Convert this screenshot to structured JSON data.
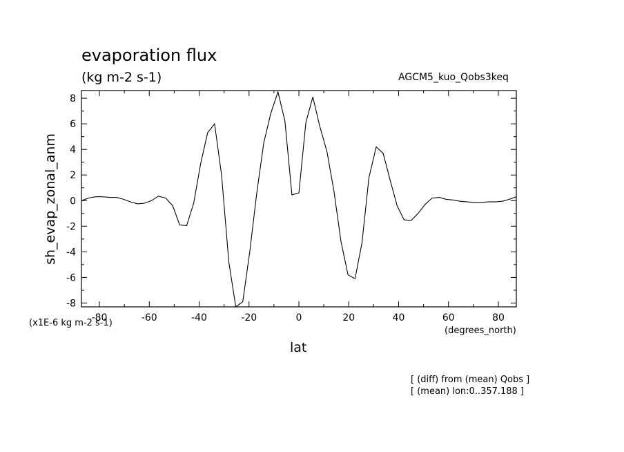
{
  "header": {
    "title": "evaporation flux",
    "units": "(kg m-2 s-1)",
    "case_name": "AGCM5_kuo_Qobs3keq"
  },
  "footer": {
    "scale_note": "(x1E-6 kg m-2 s-1)",
    "x_units": "(degrees_north)",
    "note_line1": "[ (diff) from (mean) Qobs ]",
    "note_line2": "[ (mean) lon:0..357.188 ]"
  },
  "chart_data": {
    "type": "line",
    "title": "evaporation flux",
    "xlabel": "lat",
    "ylabel": "sh_evap_zonal_anm",
    "xlim": [
      -87.2,
      87.2
    ],
    "ylim": [
      -8.3,
      8.6
    ],
    "x_ticks": [
      -80,
      -60,
      -40,
      -20,
      0,
      20,
      40,
      60,
      80
    ],
    "x_tick_labels": [
      "-80",
      "-60",
      "-40",
      "-20",
      "0",
      "20",
      "40",
      "60",
      "80"
    ],
    "y_ticks": [
      -8,
      -6,
      -4,
      -2,
      0,
      2,
      4,
      6,
      8
    ],
    "y_tick_labels": [
      "-8",
      "-6",
      "-4",
      "-2",
      "0",
      "2",
      "4",
      "6",
      "8"
    ],
    "grid": false,
    "series": [
      {
        "x": [
          -87.2,
          -84.4,
          -81.6,
          -78.8,
          -75.9,
          -73.1,
          -70.3,
          -67.5,
          -64.7,
          -61.9,
          -59.1,
          -56.3,
          -53.4,
          -50.6,
          -47.8,
          -45.0,
          -42.2,
          -39.4,
          -36.6,
          -33.8,
          -31.0,
          -28.1,
          -25.3,
          -22.5,
          -19.7,
          -16.9,
          -14.1,
          -11.3,
          -8.4,
          -5.6,
          -2.8,
          0.0,
          2.8,
          5.6,
          8.4,
          11.3,
          14.1,
          16.9,
          19.7,
          22.5,
          25.3,
          28.1,
          31.0,
          33.8,
          36.6,
          39.4,
          42.2,
          45.0,
          47.8,
          50.6,
          53.4,
          56.3,
          59.1,
          61.9,
          64.7,
          67.5,
          70.3,
          73.1,
          75.9,
          78.8,
          81.6,
          84.4,
          87.2
        ],
        "y": [
          0.0,
          0.2,
          0.3,
          0.3,
          0.25,
          0.25,
          0.1,
          -0.1,
          -0.25,
          -0.2,
          0.0,
          0.35,
          0.2,
          -0.4,
          -1.9,
          -1.95,
          -0.2,
          2.9,
          5.3,
          6.0,
          2.0,
          -4.8,
          -8.3,
          -7.9,
          -4.0,
          0.6,
          4.5,
          6.8,
          8.5,
          6.2,
          0.45,
          0.6,
          6.1,
          8.1,
          5.8,
          3.8,
          0.7,
          -3.2,
          -5.8,
          -6.1,
          -3.3,
          1.8,
          4.2,
          3.7,
          1.6,
          -0.4,
          -1.5,
          -1.55,
          -1.0,
          -0.3,
          0.2,
          0.25,
          0.1,
          0.05,
          -0.05,
          -0.1,
          -0.15,
          -0.15,
          -0.1,
          -0.1,
          -0.05,
          0.1,
          0.3
        ]
      }
    ]
  }
}
